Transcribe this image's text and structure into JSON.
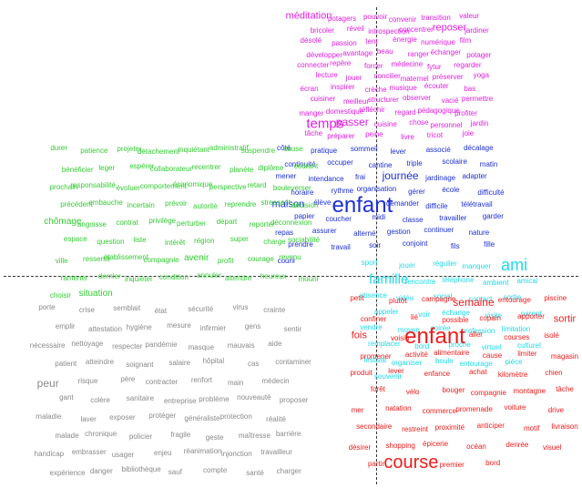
{
  "colors": {
    "magenta": "#e020e0",
    "blue": "#1c2fd6",
    "green": "#33cc33",
    "cyan": "#22d8e8",
    "red": "#ee1c1c",
    "gray": "#8a8a8a"
  },
  "clusters": {
    "magenta": [
      "méditation",
      "potagers",
      "pouvoir",
      "convenir",
      "transition",
      "valeur",
      "bricoler",
      "réveil",
      "introspection",
      "concentrer",
      "reposer",
      "jardiner",
      "désolé",
      "passion",
      "tent",
      "énergie",
      "numérique",
      "film",
      "développer",
      "avantage",
      "beau",
      "ranger",
      "échanger",
      "potager",
      "connecter",
      "repère",
      "forcer",
      "médecine",
      "fytur",
      "regarder",
      "lecture",
      "jouer",
      "concilier",
      "maternel",
      "préserver",
      "yoga",
      "écran",
      "inspirer",
      "crèche",
      "musique",
      "écouter",
      "bas",
      "cuisiner",
      "meilleur",
      "structurer",
      "observer",
      "vacié",
      "permettre",
      "manger",
      "domestique",
      "réfléchir",
      "regard",
      "pédagogique",
      "profiter",
      "temps",
      "passer",
      "cuisine",
      "chose",
      "personnel",
      "jardin",
      "tâche",
      "préparer",
      "peine",
      "livre",
      "tricot",
      "joie"
    ],
    "blue": [
      "côté",
      "pratique",
      "sommeil",
      "lever",
      "associé",
      "décalage",
      "continuité",
      "occuper",
      "cantine",
      "triple",
      "scolaire",
      "matin",
      "mener",
      "intendance",
      "frai",
      "journée",
      "jardinage",
      "adapter",
      "horaire",
      "rythme",
      "organisation",
      "gérer",
      "école",
      "difficulté",
      "maison",
      "élève",
      "enfant",
      "demander",
      "difficile",
      "télétravail",
      "papier",
      "coucher",
      "midi",
      "classe",
      "travailler",
      "garder",
      "repas",
      "assurer",
      "alterné",
      "gestion",
      "continuer",
      "nature",
      "prendre",
      "travail",
      "soir",
      "conjoint",
      "fils",
      "fille",
      "courir"
    ],
    "green": [
      "durer",
      "patience",
      "projeter",
      "détachement",
      "inquiétant",
      "administratif",
      "suspendre",
      "cause",
      "bénéficier",
      "leger",
      "espérer",
      "collaborateur",
      "recentrer",
      "planète",
      "diplôme",
      "courant",
      "prochain",
      "responsabilité",
      "évoluer",
      "comportement",
      "économique",
      "perspective",
      "retard",
      "bouleverser",
      "précédent",
      "embauche",
      "incertain",
      "prévoir",
      "autorité",
      "reprendre",
      "stressant",
      "décision",
      "chômage",
      "angoisse",
      "contrat",
      "privilège",
      "perturber",
      "départ",
      "reporter",
      "déconnexion",
      "espace",
      "question",
      "liste",
      "intérêt",
      "région",
      "super",
      "charge",
      "sociabilité",
      "ville",
      "ressentir",
      "établissement",
      "compagnie",
      "avenir",
      "profit",
      "courage",
      "revenu",
      "ramener",
      "dernier",
      "inquiéter",
      "condition",
      "annuler",
      "attendre",
      "heureux",
      "mourir",
      "choisir",
      "situation"
    ],
    "cyan": [
      "sport",
      "jouer",
      "régulier",
      "manquer",
      "ami",
      "famille",
      "rencontre",
      "téléphone",
      "ambient",
      "amical",
      "absence",
      "vidéo",
      "social",
      "contact",
      "sortie",
      "appeler",
      "voir",
      "échange",
      "visite",
      "parent",
      "vendre",
      "moyen",
      "soirée",
      "profession",
      "limitation",
      "remplacer",
      "bord",
      "proche",
      "virtuel",
      "culturel",
      "festival",
      "organiser",
      "boule",
      "entourage",
      "pièce",
      "souvenir"
    ],
    "red": [
      "petit",
      "plutôt",
      "campagne",
      "semaine",
      "entourage",
      "piscine",
      "confiner",
      "lié",
      "possible",
      "copain",
      "apporter",
      "sortir",
      "fois",
      "voisin",
      "enfant",
      "aller",
      "courses",
      "isolé",
      "promener",
      "activité",
      "alimentaire",
      "cause",
      "limiter",
      "magasin",
      "produit",
      "lever",
      "enfance",
      "achat",
      "kilomètre",
      "chien",
      "forêt",
      "vélo",
      "bouger",
      "compagnie",
      "montagne",
      "tâche",
      "mer",
      "natation",
      "commerce",
      "promenade",
      "voiture",
      "drive",
      "secondaire",
      "restreint",
      "proximité",
      "anticiper",
      "motif",
      "livraison",
      "désirer",
      "shopping",
      "épicerie",
      "océan",
      "denrée",
      "visuel",
      "partir",
      "course",
      "premier",
      "bord"
    ],
    "gray": [
      "porte",
      "crise",
      "semblait",
      "état",
      "sécurité",
      "virus",
      "crainte",
      "emplir",
      "attestation",
      "hygiène",
      "mesure",
      "infirmier",
      "gens",
      "sentir",
      "nécessaire",
      "nettoyage",
      "respecter",
      "pandémie",
      "masque",
      "mauvais",
      "aide",
      "patient",
      "atteindre",
      "soignant",
      "salaire",
      "hôpital",
      "cas",
      "contaminer",
      "peur",
      "risque",
      "père",
      "contracter",
      "renfort",
      "main",
      "médecin",
      "gant",
      "colère",
      "sanitaire",
      "entreprise",
      "problème",
      "nouveauté",
      "proposer",
      "maladie",
      "laver",
      "exposer",
      "protéger",
      "généraliste",
      "protection",
      "réalité",
      "malade",
      "chronique",
      "policier",
      "fragile",
      "geste",
      "maîtresse",
      "barrière",
      "handicap",
      "embrasser",
      "usager",
      "enjeu",
      "réanimation",
      "injonction",
      "travailleur",
      "expérience",
      "danger",
      "bibliothèque",
      "sauf",
      "compte",
      "santé",
      "charger"
    ]
  }
}
